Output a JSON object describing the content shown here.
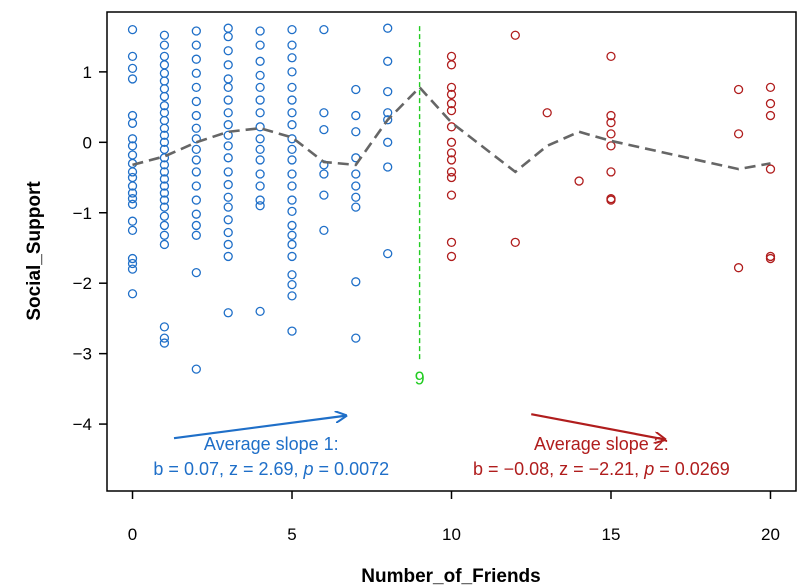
{
  "chart_data": {
    "type": "scatter",
    "xlabel": "Number_of_Friends",
    "ylabel": "Social_Support",
    "xlim": [
      -0.8,
      20.8
    ],
    "ylim": [
      -4.95,
      1.85
    ],
    "x_ticks": [
      0,
      5,
      10,
      15,
      20
    ],
    "y_ticks": [
      -4,
      -3,
      -2,
      -1,
      0,
      1
    ],
    "grid": false,
    "colors": {
      "left": "#1f6fc8",
      "right": "#b01d1d",
      "trend": "#666666",
      "breakpoint": "#22cc22"
    },
    "breakpoint": {
      "x": 9,
      "label": "9",
      "y_top": 1.65,
      "y_bottom": -3.1
    },
    "series": [
      {
        "side": "left",
        "points": [
          [
            0,
            1.6
          ],
          [
            0,
            1.22
          ],
          [
            0,
            1.05
          ],
          [
            0,
            0.9
          ],
          [
            0,
            0.38
          ],
          [
            0,
            0.27
          ],
          [
            0,
            0.05
          ],
          [
            0,
            -0.05
          ],
          [
            0,
            -0.18
          ],
          [
            0,
            -0.3
          ],
          [
            0,
            -0.42
          ],
          [
            0,
            -0.5
          ],
          [
            0,
            -0.62
          ],
          [
            0,
            -0.72
          ],
          [
            0,
            -0.8
          ],
          [
            0,
            -0.88
          ],
          [
            0,
            -1.12
          ],
          [
            0,
            -1.25
          ],
          [
            0,
            -1.65
          ],
          [
            0,
            -1.72
          ],
          [
            0,
            -1.8
          ],
          [
            0,
            -2.15
          ],
          [
            1,
            1.52
          ],
          [
            1,
            1.38
          ],
          [
            1,
            1.22
          ],
          [
            1,
            1.1
          ],
          [
            1,
            0.98
          ],
          [
            1,
            0.87
          ],
          [
            1,
            0.76
          ],
          [
            1,
            0.65
          ],
          [
            1,
            0.52
          ],
          [
            1,
            0.42
          ],
          [
            1,
            0.31
          ],
          [
            1,
            0.2
          ],
          [
            1,
            0.1
          ],
          [
            1,
            0.0
          ],
          [
            1,
            -0.1
          ],
          [
            1,
            -0.22
          ],
          [
            1,
            -0.32
          ],
          [
            1,
            -0.42
          ],
          [
            1,
            -0.52
          ],
          [
            1,
            -0.62
          ],
          [
            1,
            -0.72
          ],
          [
            1,
            -0.82
          ],
          [
            1,
            -0.92
          ],
          [
            1,
            -1.05
          ],
          [
            1,
            -1.18
          ],
          [
            1,
            -1.32
          ],
          [
            1,
            -1.45
          ],
          [
            1,
            -2.62
          ],
          [
            1,
            -2.78
          ],
          [
            1,
            -2.85
          ],
          [
            2,
            1.58
          ],
          [
            2,
            1.38
          ],
          [
            2,
            1.18
          ],
          [
            2,
            0.98
          ],
          [
            2,
            0.78
          ],
          [
            2,
            0.58
          ],
          [
            2,
            0.38
          ],
          [
            2,
            0.2
          ],
          [
            2,
            0.05
          ],
          [
            2,
            -0.1
          ],
          [
            2,
            -0.25
          ],
          [
            2,
            -0.42
          ],
          [
            2,
            -0.62
          ],
          [
            2,
            -0.82
          ],
          [
            2,
            -1.02
          ],
          [
            2,
            -1.18
          ],
          [
            2,
            -1.32
          ],
          [
            2,
            -1.85
          ],
          [
            2,
            -3.22
          ],
          [
            3,
            1.62
          ],
          [
            3,
            1.5
          ],
          [
            3,
            1.3
          ],
          [
            3,
            1.1
          ],
          [
            3,
            0.9
          ],
          [
            3,
            0.78
          ],
          [
            3,
            0.6
          ],
          [
            3,
            0.42
          ],
          [
            3,
            0.25
          ],
          [
            3,
            0.1
          ],
          [
            3,
            -0.05
          ],
          [
            3,
            -0.22
          ],
          [
            3,
            -0.42
          ],
          [
            3,
            -0.6
          ],
          [
            3,
            -0.78
          ],
          [
            3,
            -0.92
          ],
          [
            3,
            -1.1
          ],
          [
            3,
            -1.28
          ],
          [
            3,
            -1.45
          ],
          [
            3,
            -1.62
          ],
          [
            3,
            -2.42
          ],
          [
            4,
            1.58
          ],
          [
            4,
            1.38
          ],
          [
            4,
            1.15
          ],
          [
            4,
            0.95
          ],
          [
            4,
            0.78
          ],
          [
            4,
            0.6
          ],
          [
            4,
            0.42
          ],
          [
            4,
            0.22
          ],
          [
            4,
            0.05
          ],
          [
            4,
            -0.1
          ],
          [
            4,
            -0.25
          ],
          [
            4,
            -0.45
          ],
          [
            4,
            -0.62
          ],
          [
            4,
            -0.82
          ],
          [
            4,
            -0.9
          ],
          [
            4,
            -2.4
          ],
          [
            5,
            1.6
          ],
          [
            5,
            1.38
          ],
          [
            5,
            1.2
          ],
          [
            5,
            1.0
          ],
          [
            5,
            0.78
          ],
          [
            5,
            0.6
          ],
          [
            5,
            0.42
          ],
          [
            5,
            0.25
          ],
          [
            5,
            0.05
          ],
          [
            5,
            -0.1
          ],
          [
            5,
            -0.25
          ],
          [
            5,
            -0.45
          ],
          [
            5,
            -0.62
          ],
          [
            5,
            -0.82
          ],
          [
            5,
            -0.98
          ],
          [
            5,
            -1.18
          ],
          [
            5,
            -1.32
          ],
          [
            5,
            -1.45
          ],
          [
            5,
            -1.62
          ],
          [
            5,
            -1.88
          ],
          [
            5,
            -2.02
          ],
          [
            5,
            -2.18
          ],
          [
            5,
            -2.68
          ],
          [
            6,
            1.6
          ],
          [
            6,
            0.42
          ],
          [
            6,
            0.18
          ],
          [
            6,
            -0.32
          ],
          [
            6,
            -0.45
          ],
          [
            6,
            -0.75
          ],
          [
            6,
            -1.25
          ],
          [
            7,
            0.75
          ],
          [
            7,
            0.38
          ],
          [
            7,
            0.15
          ],
          [
            7,
            -0.22
          ],
          [
            7,
            -0.45
          ],
          [
            7,
            -0.62
          ],
          [
            7,
            -0.78
          ],
          [
            7,
            -0.92
          ],
          [
            7,
            -1.98
          ],
          [
            7,
            -2.78
          ],
          [
            8,
            1.62
          ],
          [
            8,
            1.15
          ],
          [
            8,
            0.72
          ],
          [
            8,
            0.42
          ],
          [
            8,
            0.32
          ],
          [
            8,
            0.0
          ],
          [
            8,
            -0.35
          ],
          [
            8,
            -1.58
          ]
        ]
      },
      {
        "side": "right",
        "points": [
          [
            10,
            1.22
          ],
          [
            10,
            1.1
          ],
          [
            10,
            0.78
          ],
          [
            10,
            0.68
          ],
          [
            10,
            0.55
          ],
          [
            10,
            0.45
          ],
          [
            10,
            0.22
          ],
          [
            10,
            0.0
          ],
          [
            10,
            -0.15
          ],
          [
            10,
            -0.25
          ],
          [
            10,
            -0.42
          ],
          [
            10,
            -0.5
          ],
          [
            10,
            -0.75
          ],
          [
            10,
            -1.42
          ],
          [
            10,
            -1.62
          ],
          [
            12,
            1.52
          ],
          [
            12,
            -1.42
          ],
          [
            13,
            0.42
          ],
          [
            14,
            -0.55
          ],
          [
            15,
            1.22
          ],
          [
            15,
            0.38
          ],
          [
            15,
            0.28
          ],
          [
            15,
            0.12
          ],
          [
            15,
            -0.05
          ],
          [
            15,
            -0.42
          ],
          [
            15,
            -0.8
          ],
          [
            15,
            -0.82
          ],
          [
            19,
            0.75
          ],
          [
            19,
            0.12
          ],
          [
            19,
            -1.78
          ],
          [
            20,
            0.78
          ],
          [
            20,
            0.55
          ],
          [
            20,
            0.38
          ],
          [
            20,
            -0.38
          ],
          [
            20,
            -1.62
          ],
          [
            20,
            -1.65
          ]
        ]
      }
    ],
    "trend_line": [
      [
        0,
        -0.32
      ],
      [
        1,
        -0.2
      ],
      [
        2,
        0.0
      ],
      [
        3,
        0.15
      ],
      [
        4,
        0.2
      ],
      [
        5,
        0.07
      ],
      [
        6,
        -0.28
      ],
      [
        7,
        -0.32
      ],
      [
        8,
        0.32
      ],
      [
        9,
        0.78
      ],
      [
        10,
        0.28
      ],
      [
        12,
        -0.42
      ],
      [
        13,
        -0.05
      ],
      [
        14,
        0.15
      ],
      [
        15,
        0.02
      ],
      [
        19,
        -0.38
      ],
      [
        20,
        -0.3
      ]
    ],
    "annotations": [
      {
        "side": "left",
        "line1": "Average slope 1:",
        "line2_prefix": "b = 0.07, z = 2.69, ",
        "p_symbol": "p",
        "line2_suffix": " = 0.0072",
        "arrow_from": [
          1.3,
          -4.2
        ],
        "arrow_to": [
          6.7,
          -3.88
        ],
        "text_x": 4.35,
        "line1_y": -4.37,
        "line2_y": -4.72
      },
      {
        "side": "right",
        "line1": "Average slope 2:",
        "line2_prefix": "b = −0.08, z = −2.21, ",
        "p_symbol": "p",
        "line2_suffix": " = 0.0269",
        "arrow_from": [
          12.5,
          -3.86
        ],
        "arrow_to": [
          16.7,
          -4.22
        ],
        "text_x": 14.7,
        "line1_y": -4.37,
        "line2_y": -4.72
      }
    ]
  }
}
